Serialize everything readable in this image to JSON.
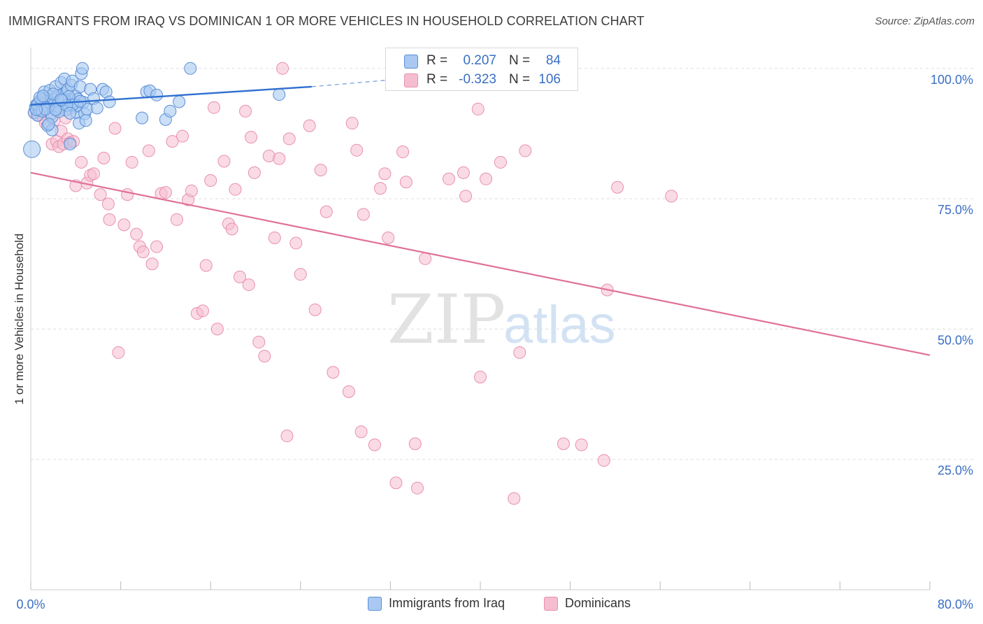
{
  "title": "IMMIGRANTS FROM IRAQ VS DOMINICAN 1 OR MORE VEHICLES IN HOUSEHOLD CORRELATION CHART",
  "source": "Source: ZipAtlas.com",
  "watermark": {
    "zip": "ZIP",
    "atlas": "atlas"
  },
  "colors": {
    "iraq_fill": "#a9c9f2",
    "iraq_stroke": "#5b8fd6",
    "iraq_line": "#2f6fd0",
    "dom_fill": "#f6bdd0",
    "dom_stroke": "#e98fae",
    "dom_line": "#e0709a",
    "axis_text": "#3a6fc4",
    "grid": "#dddddd"
  },
  "stats": {
    "iraq": {
      "r_label": "R =",
      "r_value": "0.207",
      "n_label": "N =",
      "n_value": "84"
    },
    "dominican": {
      "r_label": "R =",
      "r_value": "-0.323",
      "n_label": "N =",
      "n_value": "106"
    }
  },
  "chart_data": {
    "type": "scatter",
    "title": "IMMIGRANTS FROM IRAQ VS DOMINICAN 1 OR MORE VEHICLES IN HOUSEHOLD CORRELATION CHART",
    "xlabel": "",
    "ylabel": "1 or more Vehicles in Household",
    "xlim": [
      0,
      80
    ],
    "ylim": [
      0,
      104
    ],
    "x_tick_labels": [
      "0.0%",
      "80.0%"
    ],
    "y_ticks": [
      25,
      50,
      75,
      100
    ],
    "y_tick_labels": [
      "25.0%",
      "50.0%",
      "75.0%",
      "100.0%"
    ],
    "grid": true,
    "legend": "bottom",
    "series": [
      {
        "name": "Immigrants from Iraq",
        "color": "#a9c9f2",
        "trend": {
          "x": [
            0,
            25
          ],
          "y": [
            93.0,
            96.5
          ],
          "dashed_to": [
            32,
            97.8
          ]
        },
        "points": [
          [
            0.1,
            84.5
          ],
          [
            0.3,
            91.5
          ],
          [
            0.4,
            92.5
          ],
          [
            0.5,
            93.0
          ],
          [
            0.6,
            91.0
          ],
          [
            0.7,
            93.5
          ],
          [
            0.8,
            92.0
          ],
          [
            0.9,
            94.0
          ],
          [
            1.0,
            93.2
          ],
          [
            1.1,
            92.8
          ],
          [
            1.2,
            95.5
          ],
          [
            1.3,
            94.3
          ],
          [
            1.4,
            93.6
          ],
          [
            1.5,
            89.0
          ],
          [
            1.6,
            92.5
          ],
          [
            1.7,
            95.8
          ],
          [
            1.8,
            91.2
          ],
          [
            1.9,
            88.2
          ],
          [
            2.0,
            94.0
          ],
          [
            2.1,
            93.2
          ],
          [
            2.2,
            96.5
          ],
          [
            2.3,
            92.0
          ],
          [
            2.4,
            94.8
          ],
          [
            2.5,
            93.7
          ],
          [
            2.6,
            92.6
          ],
          [
            2.7,
            97.3
          ],
          [
            2.8,
            95.0
          ],
          [
            2.9,
            93.3
          ],
          [
            3.0,
            98.0
          ],
          [
            3.1,
            92.0
          ],
          [
            3.2,
            95.5
          ],
          [
            3.3,
            96.0
          ],
          [
            3.4,
            94.0
          ],
          [
            3.5,
            85.5
          ],
          [
            3.6,
            96.8
          ],
          [
            3.7,
            97.6
          ],
          [
            3.8,
            93.2
          ],
          [
            3.9,
            92.5
          ],
          [
            4.0,
            94.7
          ],
          [
            4.1,
            91.5
          ],
          [
            4.2,
            94.1
          ],
          [
            4.3,
            89.5
          ],
          [
            4.4,
            96.5
          ],
          [
            4.5,
            99.0
          ],
          [
            4.6,
            100.0
          ],
          [
            4.7,
            93.5
          ],
          [
            4.8,
            91.3
          ],
          [
            4.9,
            90.0
          ],
          [
            5.0,
            92.2
          ],
          [
            5.3,
            96.0
          ],
          [
            5.6,
            94.2
          ],
          [
            5.9,
            92.4
          ],
          [
            6.4,
            96.0
          ],
          [
            6.7,
            95.5
          ],
          [
            7.0,
            93.6
          ],
          [
            9.9,
            90.5
          ],
          [
            10.3,
            95.5
          ],
          [
            10.6,
            95.7
          ],
          [
            11.2,
            94.9
          ],
          [
            12.0,
            90.2
          ],
          [
            12.4,
            91.8
          ],
          [
            13.2,
            93.6
          ],
          [
            14.2,
            100.0
          ],
          [
            22.1,
            95.0
          ],
          [
            0.6,
            93.1
          ],
          [
            1.0,
            91.8
          ],
          [
            1.9,
            90.7
          ],
          [
            2.5,
            91.7
          ],
          [
            3.0,
            93.9
          ],
          [
            3.4,
            94.6
          ],
          [
            4.1,
            92.9
          ],
          [
            0.8,
            94.4
          ],
          [
            1.3,
            92.2
          ],
          [
            2.2,
            92.1
          ],
          [
            2.8,
            93.8
          ],
          [
            3.7,
            93.0
          ],
          [
            1.6,
            89.3
          ],
          [
            2.0,
            95.1
          ],
          [
            3.2,
            92.9
          ],
          [
            4.4,
            93.7
          ],
          [
            0.5,
            92.1
          ],
          [
            1.1,
            94.7
          ],
          [
            2.7,
            94.0
          ],
          [
            3.5,
            91.4
          ]
        ]
      },
      {
        "name": "Dominicans",
        "color": "#f6bdd0",
        "trend": {
          "x": [
            0,
            80
          ],
          "y": [
            80.0,
            45.0
          ]
        },
        "points": [
          [
            0.3,
            91.5
          ],
          [
            0.5,
            92.0
          ],
          [
            0.7,
            91.0
          ],
          [
            0.9,
            93.0
          ],
          [
            1.1,
            90.5
          ],
          [
            1.3,
            89.5
          ],
          [
            1.5,
            94.0
          ],
          [
            1.7,
            92.5
          ],
          [
            1.9,
            85.5
          ],
          [
            2.1,
            90.0
          ],
          [
            2.3,
            86.0
          ],
          [
            2.5,
            85.0
          ],
          [
            2.7,
            88.0
          ],
          [
            2.9,
            85.5
          ],
          [
            3.1,
            90.5
          ],
          [
            3.3,
            86.5
          ],
          [
            3.5,
            85.8
          ],
          [
            3.8,
            86.0
          ],
          [
            4.0,
            77.5
          ],
          [
            4.5,
            82.0
          ],
          [
            5.0,
            78.0
          ],
          [
            5.3,
            79.5
          ],
          [
            5.6,
            79.8
          ],
          [
            6.2,
            75.8
          ],
          [
            6.5,
            82.8
          ],
          [
            6.9,
            74.0
          ],
          [
            7.0,
            71.0
          ],
          [
            7.5,
            88.5
          ],
          [
            7.8,
            45.5
          ],
          [
            8.3,
            70.0
          ],
          [
            8.6,
            75.8
          ],
          [
            9.0,
            82.0
          ],
          [
            9.4,
            68.2
          ],
          [
            9.7,
            65.8
          ],
          [
            10.0,
            64.8
          ],
          [
            10.5,
            84.2
          ],
          [
            10.8,
            62.5
          ],
          [
            11.2,
            65.8
          ],
          [
            11.6,
            76.0
          ],
          [
            12.0,
            76.2
          ],
          [
            12.6,
            86.0
          ],
          [
            13.0,
            71.0
          ],
          [
            13.5,
            87.0
          ],
          [
            14.0,
            74.8
          ],
          [
            14.3,
            76.5
          ],
          [
            14.8,
            53.0
          ],
          [
            15.3,
            53.5
          ],
          [
            15.6,
            62.2
          ],
          [
            16.0,
            78.5
          ],
          [
            16.3,
            92.5
          ],
          [
            16.6,
            50.0
          ],
          [
            17.2,
            82.2
          ],
          [
            17.6,
            70.2
          ],
          [
            17.9,
            69.2
          ],
          [
            18.2,
            76.8
          ],
          [
            18.6,
            60.0
          ],
          [
            19.1,
            91.8
          ],
          [
            19.4,
            58.5
          ],
          [
            19.6,
            86.8
          ],
          [
            19.9,
            80.0
          ],
          [
            20.3,
            47.5
          ],
          [
            20.8,
            44.8
          ],
          [
            21.2,
            83.2
          ],
          [
            21.7,
            67.5
          ],
          [
            22.1,
            82.7
          ],
          [
            22.4,
            100.0
          ],
          [
            22.8,
            29.5
          ],
          [
            23.0,
            86.5
          ],
          [
            23.6,
            66.5
          ],
          [
            24.0,
            60.5
          ],
          [
            24.8,
            89.0
          ],
          [
            25.3,
            53.7
          ],
          [
            25.8,
            80.5
          ],
          [
            26.3,
            72.5
          ],
          [
            26.9,
            41.7
          ],
          [
            28.3,
            38.0
          ],
          [
            28.6,
            89.5
          ],
          [
            29.0,
            84.3
          ],
          [
            29.4,
            30.3
          ],
          [
            29.6,
            72.0
          ],
          [
            30.6,
            27.8
          ],
          [
            31.1,
            77.0
          ],
          [
            31.5,
            79.8
          ],
          [
            31.8,
            67.5
          ],
          [
            32.5,
            20.5
          ],
          [
            33.1,
            84.0
          ],
          [
            33.4,
            78.2
          ],
          [
            34.2,
            28.0
          ],
          [
            34.4,
            19.5
          ],
          [
            35.1,
            63.5
          ],
          [
            37.2,
            78.8
          ],
          [
            38.5,
            80.0
          ],
          [
            38.7,
            75.5
          ],
          [
            39.8,
            92.2
          ],
          [
            40.0,
            40.8
          ],
          [
            40.5,
            78.8
          ],
          [
            41.8,
            82.0
          ],
          [
            43.0,
            17.5
          ],
          [
            43.5,
            45.5
          ],
          [
            44.0,
            84.2
          ],
          [
            47.4,
            28.0
          ],
          [
            49.0,
            27.8
          ],
          [
            51.0,
            24.8
          ],
          [
            51.3,
            57.5
          ],
          [
            52.2,
            77.2
          ],
          [
            57.0,
            75.5
          ]
        ]
      }
    ]
  },
  "legend": {
    "iraq": "Immigrants from Iraq",
    "dominican": "Dominicans"
  }
}
